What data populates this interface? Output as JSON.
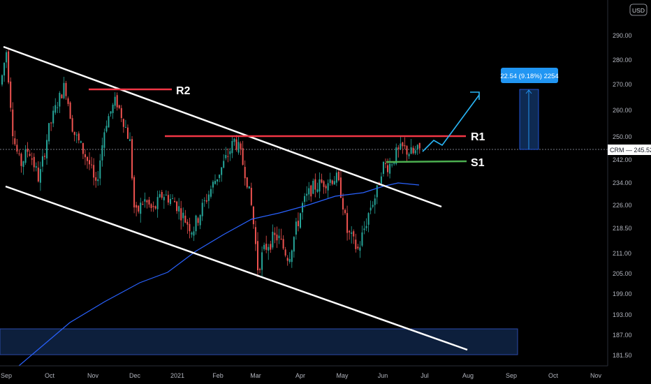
{
  "chart_data": {
    "type": "candlestick",
    "symbol": "CRM",
    "currency": "USD",
    "last_price": "245.52",
    "y_ticks": [
      181.5,
      187.0,
      193.0,
      199.0,
      205.0,
      211.0,
      218.5,
      226.0,
      234.0,
      242.0,
      250.0,
      260.0,
      270.0,
      280.0,
      290.0
    ],
    "y_tick_labels": [
      "181.50",
      "187.00",
      "193.00",
      "199.00",
      "205.00",
      "211.00",
      "218.50",
      "226.00",
      "234.00",
      "242.00",
      "250.00",
      "260.00",
      "270.00",
      "280.00",
      "290.00"
    ],
    "x_labels": [
      "Sep",
      "Oct",
      "Nov",
      "Dec",
      "2021",
      "Feb",
      "Mar",
      "Apr",
      "May",
      "Jun",
      "Jul",
      "Aug",
      "Sep",
      "Oct",
      "Nov"
    ],
    "ylim": [
      179.5,
      296.5
    ],
    "levels": [
      {
        "label": "R2",
        "price": 268.0,
        "color": "#f23645"
      },
      {
        "label": "R1",
        "price": 249.8,
        "color": "#f23645"
      },
      {
        "label": "S1",
        "price": 242.4,
        "color": "#4caf50"
      }
    ],
    "measure_label": "22.54 (9.18%) 2254",
    "measure_range": [
      245.5,
      268.0
    ],
    "colors": {
      "up": "#26a69a",
      "down": "#ef5350",
      "moving_average": "#2962ff",
      "projection": "#29b6f6",
      "channel": "#ffffff",
      "measure": "#2196f3",
      "support_zone": "#1e3a5f"
    }
  },
  "axis": {
    "currency_badge": "USD",
    "price_tag_label": "CRM — 245.52"
  }
}
